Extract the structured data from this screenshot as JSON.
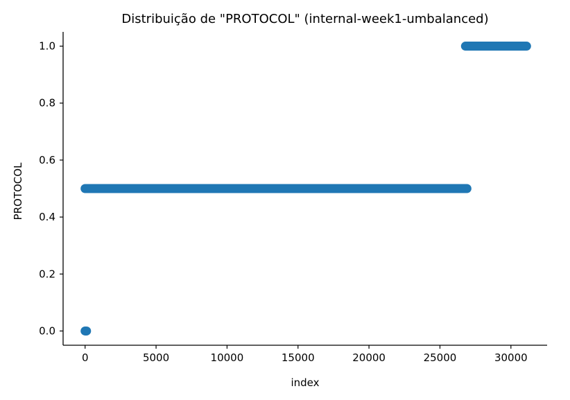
{
  "chart_data": {
    "type": "scatter",
    "title": "Distribuição de \"PROTOCOL\" (internal-week1-umbalanced)",
    "xlabel": "index",
    "ylabel": "PROTOCOL",
    "xlim": [
      -1550,
      32550
    ],
    "ylim": [
      -0.05,
      1.05
    ],
    "x_ticks": [
      0,
      5000,
      10000,
      15000,
      20000,
      25000,
      30000
    ],
    "y_ticks": [
      0.0,
      0.2,
      0.4,
      0.6,
      0.8,
      1.0
    ],
    "x_tick_labels": [
      "0",
      "5000",
      "10000",
      "15000",
      "20000",
      "25000",
      "30000"
    ],
    "y_tick_labels": [
      "0.0",
      "0.2",
      "0.4",
      "0.6",
      "0.8",
      "1.0"
    ],
    "grid": false,
    "marker_color": "#1f77b4",
    "segments": [
      {
        "x_start": 0,
        "x_end": 100,
        "y": 0.0
      },
      {
        "x_start": 0,
        "x_end": 26900,
        "y": 0.5
      },
      {
        "x_start": 26800,
        "x_end": 31100,
        "y": 1.0
      }
    ]
  }
}
